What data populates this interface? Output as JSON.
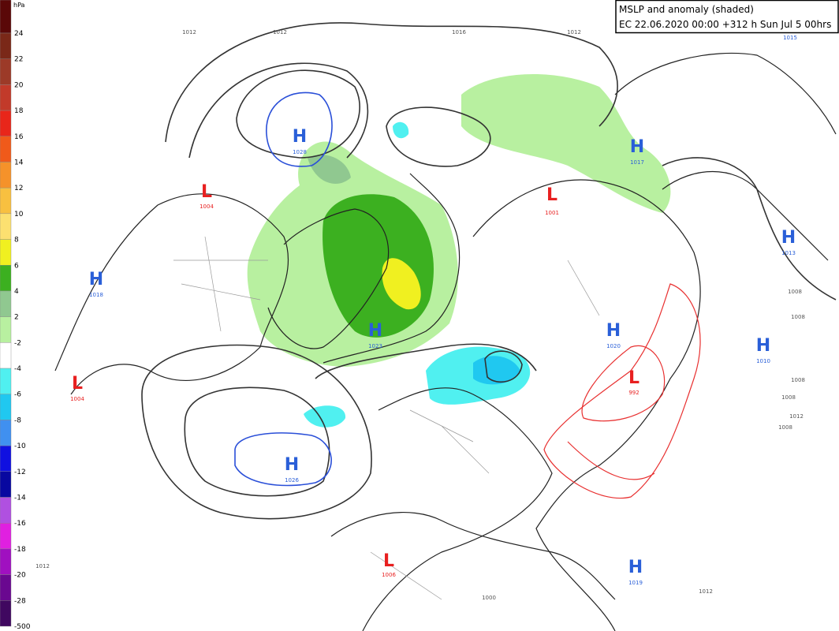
{
  "header": {
    "title": "MSLP and anomaly (shaded)",
    "subtitle": "EC 22.06.2020 00:00 +312 h Sun Jul 5 00hrs"
  },
  "colorbar": {
    "unit": "hPa",
    "labels": [
      24,
      22,
      20,
      18,
      16,
      14,
      12,
      10,
      8,
      6,
      4,
      2,
      -2,
      -4,
      -6,
      -8,
      -10,
      -12,
      -14,
      -16,
      -18,
      -20,
      -28,
      -500
    ],
    "colors": [
      "#5a0808",
      "#7a2818",
      "#9c3a28",
      "#c23a2a",
      "#e8261a",
      "#f05a1a",
      "#f5922a",
      "#f8c040",
      "#fce070",
      "#f0f020",
      "#3cb020",
      "#90c890",
      "#b8f0a0",
      "#ffffff",
      "#50f0f0",
      "#20c8f0",
      "#4090f0",
      "#1010e0",
      "#0808a0",
      "#b050e0",
      "#e020e0",
      "#a010c0",
      "#6a0890",
      "#400860"
    ]
  },
  "centers": [
    {
      "type": "H",
      "value": "1028"
    },
    {
      "type": "L",
      "value": "1004"
    },
    {
      "type": "H",
      "value": "1018"
    },
    {
      "type": "H",
      "value": "1023"
    },
    {
      "type": "L",
      "value": "1004"
    },
    {
      "type": "H",
      "value": "1026"
    },
    {
      "type": "L",
      "value": "1006"
    },
    {
      "type": "H",
      "value": "1019"
    },
    {
      "type": "H",
      "value": "1017"
    },
    {
      "type": "L",
      "value": "1001"
    },
    {
      "type": "H",
      "value": "1013"
    },
    {
      "type": "H",
      "value": "1020"
    },
    {
      "type": "L",
      "value": "992"
    },
    {
      "type": "H",
      "value": "1010"
    },
    {
      "type": "H",
      "value": "1015"
    }
  ],
  "contour_labels": [
    "1012",
    "1012",
    "1016",
    "1012",
    "1008",
    "1008",
    "1008",
    "1008",
    "1012",
    "1008",
    "1000",
    "1012",
    "1012"
  ]
}
